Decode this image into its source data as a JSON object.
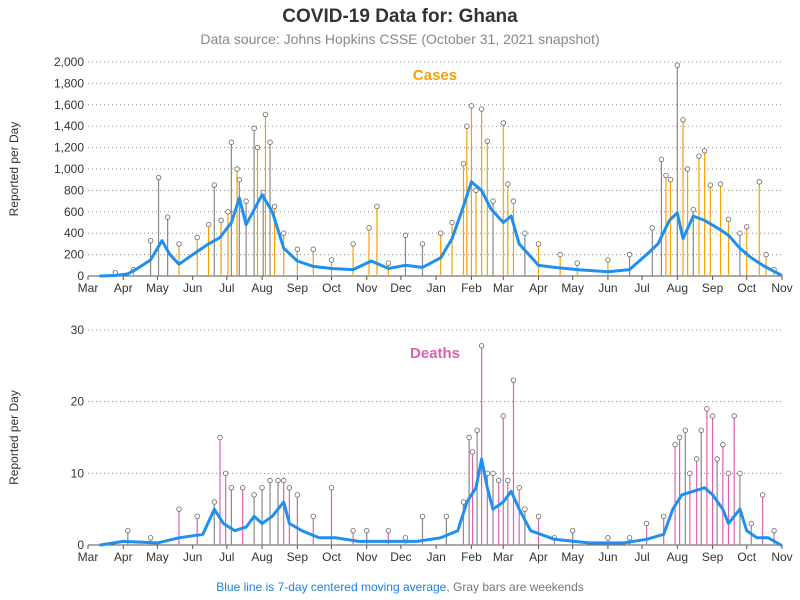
{
  "title": "COVID-19 Data for: Ghana",
  "subtitle": "Data source: Johns Hopkins CSSE (October 31, 2021 snapshot)",
  "footnote": {
    "blue_part": "Blue line is 7-day centered moving average,",
    "gray_part": "Gray bars are weekends"
  },
  "colors": {
    "cases": "#f5a100",
    "deaths": "#e060b0",
    "average": "#1f8ff0",
    "weekend": "#888888"
  },
  "chart_data": [
    {
      "type": "bar",
      "title": "Cases",
      "ylabel": "Reported per Day",
      "ylim": [
        0,
        2000
      ],
      "yticks": [
        0,
        200,
        400,
        600,
        800,
        1000,
        1200,
        1400,
        1600,
        1800,
        2000
      ],
      "ytick_labels": [
        "0",
        "200",
        "400",
        "600",
        "800",
        "1,000",
        "1,200",
        "1,400",
        "1,600",
        "1,800",
        "2,000"
      ],
      "xlim": [
        "2020-03-01",
        "2021-11-01"
      ],
      "xtick_labels": [
        "Mar",
        "Apr",
        "May",
        "Jun",
        "Jul",
        "Aug",
        "Sep",
        "Oct",
        "Nov",
        "Dec",
        "Jan",
        "Feb",
        "Mar",
        "Apr",
        "May",
        "Jun",
        "Jul",
        "Aug",
        "Sep",
        "Oct",
        "Nov"
      ],
      "grid": true,
      "series": [
        {
          "name": "daily",
          "points": [
            [
              "2020-03-25",
              30
            ],
            [
              "2020-04-10",
              60
            ],
            [
              "2020-04-25",
              330
            ],
            [
              "2020-05-02",
              920
            ],
            [
              "2020-05-10",
              550
            ],
            [
              "2020-05-20",
              300
            ],
            [
              "2020-06-05",
              360
            ],
            [
              "2020-06-15",
              480
            ],
            [
              "2020-06-20",
              850
            ],
            [
              "2020-06-26",
              520
            ],
            [
              "2020-07-02",
              600
            ],
            [
              "2020-07-05",
              1250
            ],
            [
              "2020-07-10",
              1000
            ],
            [
              "2020-07-12",
              900
            ],
            [
              "2020-07-18",
              700
            ],
            [
              "2020-07-25",
              1380
            ],
            [
              "2020-07-28",
              1200
            ],
            [
              "2020-08-02",
              780
            ],
            [
              "2020-08-04",
              1510
            ],
            [
              "2020-08-08",
              1250
            ],
            [
              "2020-08-12",
              650
            ],
            [
              "2020-08-20",
              400
            ],
            [
              "2020-09-01",
              250
            ],
            [
              "2020-09-15",
              250
            ],
            [
              "2020-10-01",
              150
            ],
            [
              "2020-10-20",
              300
            ],
            [
              "2020-11-03",
              450
            ],
            [
              "2020-11-10",
              650
            ],
            [
              "2020-11-20",
              120
            ],
            [
              "2020-12-05",
              380
            ],
            [
              "2020-12-20",
              300
            ],
            [
              "2021-01-05",
              400
            ],
            [
              "2021-01-15",
              500
            ],
            [
              "2021-01-25",
              1050
            ],
            [
              "2021-01-28",
              1400
            ],
            [
              "2021-02-01",
              1590
            ],
            [
              "2021-02-05",
              800
            ],
            [
              "2021-02-10",
              1560
            ],
            [
              "2021-02-15",
              1260
            ],
            [
              "2021-02-20",
              700
            ],
            [
              "2021-03-01",
              1430
            ],
            [
              "2021-03-05",
              860
            ],
            [
              "2021-03-10",
              700
            ],
            [
              "2021-03-20",
              400
            ],
            [
              "2021-04-01",
              300
            ],
            [
              "2021-04-20",
              200
            ],
            [
              "2021-05-05",
              120
            ],
            [
              "2021-06-01",
              150
            ],
            [
              "2021-06-20",
              200
            ],
            [
              "2021-07-10",
              450
            ],
            [
              "2021-07-18",
              1090
            ],
            [
              "2021-07-22",
              940
            ],
            [
              "2021-07-26",
              900
            ],
            [
              "2021-08-01",
              1970
            ],
            [
              "2021-08-06",
              1460
            ],
            [
              "2021-08-10",
              1000
            ],
            [
              "2021-08-15",
              620
            ],
            [
              "2021-08-20",
              1120
            ],
            [
              "2021-08-25",
              1170
            ],
            [
              "2021-08-30",
              850
            ],
            [
              "2021-09-08",
              860
            ],
            [
              "2021-09-15",
              530
            ],
            [
              "2021-09-25",
              400
            ],
            [
              "2021-10-01",
              460
            ],
            [
              "2021-10-12",
              880
            ],
            [
              "2021-10-18",
              200
            ],
            [
              "2021-10-25",
              60
            ]
          ]
        },
        {
          "name": "7-day centered moving average",
          "points": [
            [
              "2020-03-12",
              0
            ],
            [
              "2020-03-25",
              5
            ],
            [
              "2020-04-05",
              20
            ],
            [
              "2020-04-15",
              80
            ],
            [
              "2020-04-25",
              150
            ],
            [
              "2020-05-05",
              330
            ],
            [
              "2020-05-12",
              200
            ],
            [
              "2020-05-20",
              110
            ],
            [
              "2020-06-01",
              200
            ],
            [
              "2020-06-15",
              300
            ],
            [
              "2020-06-25",
              360
            ],
            [
              "2020-07-05",
              500
            ],
            [
              "2020-07-12",
              730
            ],
            [
              "2020-07-18",
              480
            ],
            [
              "2020-07-25",
              620
            ],
            [
              "2020-08-01",
              760
            ],
            [
              "2020-08-10",
              600
            ],
            [
              "2020-08-20",
              260
            ],
            [
              "2020-09-01",
              140
            ],
            [
              "2020-09-15",
              90
            ],
            [
              "2020-10-01",
              70
            ],
            [
              "2020-10-20",
              60
            ],
            [
              "2020-11-05",
              140
            ],
            [
              "2020-11-20",
              70
            ],
            [
              "2020-12-05",
              100
            ],
            [
              "2020-12-20",
              80
            ],
            [
              "2021-01-05",
              170
            ],
            [
              "2021-01-15",
              350
            ],
            [
              "2021-01-25",
              650
            ],
            [
              "2021-02-01",
              880
            ],
            [
              "2021-02-10",
              800
            ],
            [
              "2021-02-18",
              630
            ],
            [
              "2021-03-01",
              500
            ],
            [
              "2021-03-08",
              560
            ],
            [
              "2021-03-15",
              300
            ],
            [
              "2021-04-01",
              100
            ],
            [
              "2021-04-15",
              80
            ],
            [
              "2021-05-05",
              60
            ],
            [
              "2021-06-01",
              40
            ],
            [
              "2021-06-20",
              60
            ],
            [
              "2021-07-05",
              200
            ],
            [
              "2021-07-15",
              300
            ],
            [
              "2021-07-25",
              520
            ],
            [
              "2021-08-01",
              590
            ],
            [
              "2021-08-06",
              350
            ],
            [
              "2021-08-15",
              560
            ],
            [
              "2021-08-25",
              520
            ],
            [
              "2021-09-05",
              450
            ],
            [
              "2021-09-15",
              380
            ],
            [
              "2021-09-25",
              260
            ],
            [
              "2021-10-05",
              170
            ],
            [
              "2021-10-15",
              100
            ],
            [
              "2021-10-22",
              60
            ],
            [
              "2021-10-31",
              10
            ]
          ]
        }
      ]
    },
    {
      "type": "bar",
      "title": "Deaths",
      "ylabel": "Reported per Day",
      "ylim": [
        0,
        30
      ],
      "yticks": [
        0,
        10,
        20,
        30
      ],
      "ytick_labels": [
        "0",
        "10",
        "20",
        "30"
      ],
      "xlim": [
        "2020-03-01",
        "2021-11-01"
      ],
      "xtick_labels": [
        "Mar",
        "Apr",
        "May",
        "Jun",
        "Jul",
        "Aug",
        "Sep",
        "Oct",
        "Nov",
        "Dec",
        "Jan",
        "Feb",
        "Mar",
        "Apr",
        "May",
        "Jun",
        "Jul",
        "Aug",
        "Sep",
        "Oct",
        "Nov"
      ],
      "grid": true,
      "series": [
        {
          "name": "daily",
          "points": [
            [
              "2020-04-05",
              2
            ],
            [
              "2020-04-25",
              1
            ],
            [
              "2020-05-20",
              5
            ],
            [
              "2020-06-05",
              4
            ],
            [
              "2020-06-20",
              6
            ],
            [
              "2020-06-25",
              15
            ],
            [
              "2020-06-30",
              10
            ],
            [
              "2020-07-05",
              8
            ],
            [
              "2020-07-15",
              8
            ],
            [
              "2020-07-25",
              7
            ],
            [
              "2020-08-01",
              8
            ],
            [
              "2020-08-08",
              9
            ],
            [
              "2020-08-15",
              9
            ],
            [
              "2020-08-20",
              9
            ],
            [
              "2020-08-25",
              8
            ],
            [
              "2020-09-01",
              7
            ],
            [
              "2020-09-15",
              4
            ],
            [
              "2020-10-01",
              8
            ],
            [
              "2020-10-20",
              2
            ],
            [
              "2020-11-01",
              2
            ],
            [
              "2020-11-20",
              2
            ],
            [
              "2020-12-05",
              1
            ],
            [
              "2020-12-20",
              4
            ],
            [
              "2021-01-10",
              4
            ],
            [
              "2021-01-25",
              6
            ],
            [
              "2021-01-30",
              15
            ],
            [
              "2021-02-02",
              13
            ],
            [
              "2021-02-06",
              16
            ],
            [
              "2021-02-10",
              27.8
            ],
            [
              "2021-02-15",
              10
            ],
            [
              "2021-02-20",
              10
            ],
            [
              "2021-02-25",
              9
            ],
            [
              "2021-03-01",
              18
            ],
            [
              "2021-03-05",
              9
            ],
            [
              "2021-03-10",
              23
            ],
            [
              "2021-03-15",
              8
            ],
            [
              "2021-03-20",
              5
            ],
            [
              "2021-04-01",
              4
            ],
            [
              "2021-04-15",
              1
            ],
            [
              "2021-05-01",
              2
            ],
            [
              "2021-06-01",
              1
            ],
            [
              "2021-06-20",
              1
            ],
            [
              "2021-07-05",
              3
            ],
            [
              "2021-07-20",
              4
            ],
            [
              "2021-07-30",
              14
            ],
            [
              "2021-08-03",
              15
            ],
            [
              "2021-08-08",
              16
            ],
            [
              "2021-08-12",
              10
            ],
            [
              "2021-08-18",
              12
            ],
            [
              "2021-08-22",
              16
            ],
            [
              "2021-08-27",
              19
            ],
            [
              "2021-09-01",
              18
            ],
            [
              "2021-09-05",
              12
            ],
            [
              "2021-09-10",
              14
            ],
            [
              "2021-09-15",
              10
            ],
            [
              "2021-09-20",
              18
            ],
            [
              "2021-09-25",
              10
            ],
            [
              "2021-10-05",
              3
            ],
            [
              "2021-10-15",
              7
            ],
            [
              "2021-10-25",
              2
            ]
          ]
        },
        {
          "name": "7-day centered moving average",
          "points": [
            [
              "2020-03-12",
              0
            ],
            [
              "2020-04-01",
              0.5
            ],
            [
              "2020-05-01",
              0.3
            ],
            [
              "2020-05-20",
              1
            ],
            [
              "2020-06-10",
              1.5
            ],
            [
              "2020-06-20",
              5
            ],
            [
              "2020-06-28",
              3
            ],
            [
              "2020-07-08",
              2
            ],
            [
              "2020-07-18",
              2.5
            ],
            [
              "2020-07-25",
              4
            ],
            [
              "2020-08-01",
              3
            ],
            [
              "2020-08-10",
              4
            ],
            [
              "2020-08-20",
              6
            ],
            [
              "2020-08-25",
              3
            ],
            [
              "2020-09-05",
              2
            ],
            [
              "2020-09-20",
              1
            ],
            [
              "2020-10-05",
              1
            ],
            [
              "2020-10-25",
              0.5
            ],
            [
              "2020-11-15",
              0.5
            ],
            [
              "2020-12-15",
              0.5
            ],
            [
              "2021-01-05",
              1
            ],
            [
              "2021-01-20",
              2
            ],
            [
              "2021-01-28",
              6
            ],
            [
              "2021-02-05",
              8
            ],
            [
              "2021-02-10",
              12
            ],
            [
              "2021-02-15",
              8
            ],
            [
              "2021-02-20",
              5
            ],
            [
              "2021-03-01",
              6
            ],
            [
              "2021-03-08",
              7.5
            ],
            [
              "2021-03-15",
              5
            ],
            [
              "2021-03-25",
              2
            ],
            [
              "2021-04-15",
              0.8
            ],
            [
              "2021-05-15",
              0.3
            ],
            [
              "2021-06-15",
              0.3
            ],
            [
              "2021-07-05",
              0.8
            ],
            [
              "2021-07-20",
              1.5
            ],
            [
              "2021-07-28",
              5
            ],
            [
              "2021-08-05",
              7
            ],
            [
              "2021-08-15",
              7.5
            ],
            [
              "2021-08-25",
              8
            ],
            [
              "2021-09-01",
              7
            ],
            [
              "2021-09-10",
              5
            ],
            [
              "2021-09-15",
              3
            ],
            [
              "2021-09-20",
              4
            ],
            [
              "2021-09-25",
              5
            ],
            [
              "2021-10-01",
              2
            ],
            [
              "2021-10-10",
              1
            ],
            [
              "2021-10-20",
              1
            ],
            [
              "2021-10-31",
              0
            ]
          ]
        }
      ]
    }
  ]
}
